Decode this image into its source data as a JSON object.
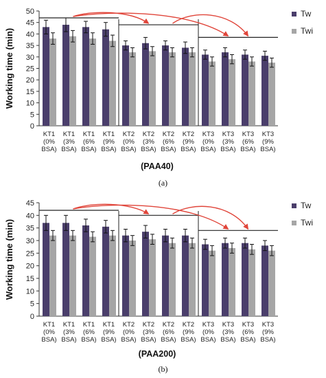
{
  "colors": {
    "tw": "#4a3e6b",
    "twi": "#a6a6a6",
    "arrow": "#e0453a",
    "axis": "#333333",
    "bracket": "#222222"
  },
  "chart_data": [
    {
      "type": "bar",
      "panel": "(a)",
      "title": "(PAA40)",
      "ylabel": "Working time (min)",
      "ylim": [
        0,
        50
      ],
      "yticks": [
        0,
        5,
        10,
        15,
        20,
        25,
        30,
        35,
        40,
        45,
        50
      ],
      "categories": [
        [
          "KT1",
          "(0%",
          "BSA)"
        ],
        [
          "KT1",
          "(3%",
          "BSA)"
        ],
        [
          "KT1",
          "(6%",
          "BSA)"
        ],
        [
          "KT1",
          "(9%",
          "BSA)"
        ],
        [
          "KT2",
          "(0%",
          "BSA)"
        ],
        [
          "KT2",
          "(3%",
          "BSA)"
        ],
        [
          "KT2",
          "(6%",
          "BSA)"
        ],
        [
          "KT2",
          "(9%",
          "BSA)"
        ],
        [
          "KT3",
          "(0%",
          "BSA)"
        ],
        [
          "KT3",
          "(3%",
          "BSA)"
        ],
        [
          "KT3",
          "(6%",
          "BSA)"
        ],
        [
          "KT3",
          "(9%",
          "BSA)"
        ]
      ],
      "series": [
        {
          "name": "Tw",
          "values": [
            43,
            44,
            43,
            42,
            35,
            36,
            35,
            34,
            31,
            32,
            31,
            30.5
          ],
          "errors": [
            3,
            3,
            2.5,
            3,
            2,
            2.5,
            2,
            2.5,
            2,
            2,
            2,
            2
          ]
        },
        {
          "name": "Twi",
          "values": [
            38,
            39,
            38,
            37,
            32,
            32.5,
            32,
            32,
            28,
            29,
            28,
            27.5
          ],
          "errors": [
            2.5,
            2.5,
            2.5,
            2.5,
            2,
            2,
            2,
            2,
            2,
            2,
            2,
            2
          ]
        }
      ],
      "legend": "top-right",
      "grid": false
    },
    {
      "type": "bar",
      "panel": "(b)",
      "title": "(PAA200)",
      "ylabel": "Working time (min)",
      "ylim": [
        0,
        45
      ],
      "yticks": [
        0,
        5,
        10,
        15,
        20,
        25,
        30,
        35,
        40,
        45
      ],
      "categories": [
        [
          "KT1",
          "(0%",
          "BSA)"
        ],
        [
          "KT1",
          "(3%",
          "BSA)"
        ],
        [
          "KT1",
          "(6%",
          "BSA)"
        ],
        [
          "KT1",
          "(9%",
          "BSA)"
        ],
        [
          "KT2",
          "(0%",
          "BSA)"
        ],
        [
          "KT2",
          "(3%",
          "BSA)"
        ],
        [
          "KT2",
          "(6%",
          "BSA)"
        ],
        [
          "KT2",
          "(9%",
          "BSA)"
        ],
        [
          "KT3",
          "(0%",
          "BSA)"
        ],
        [
          "KT3",
          "(3%",
          "BSA)"
        ],
        [
          "KT3",
          "(6%",
          "BSA)"
        ],
        [
          "KT3",
          "(9%",
          "BSA)"
        ]
      ],
      "series": [
        {
          "name": "Tw",
          "values": [
            37,
            37,
            36,
            35.5,
            32,
            33.5,
            32,
            32,
            28.5,
            29,
            29,
            28
          ],
          "errors": [
            3,
            3,
            2.5,
            2.5,
            2.5,
            2.5,
            2.5,
            2.5,
            2,
            2,
            2,
            2
          ]
        },
        {
          "name": "Twi",
          "values": [
            32,
            32,
            31.5,
            32,
            30,
            30.5,
            29,
            29,
            26,
            27,
            26.5,
            26
          ],
          "errors": [
            2,
            2,
            2,
            2,
            2,
            2,
            2,
            2,
            2,
            2,
            2,
            2
          ]
        }
      ],
      "legend": "top-right",
      "grid": false
    }
  ]
}
